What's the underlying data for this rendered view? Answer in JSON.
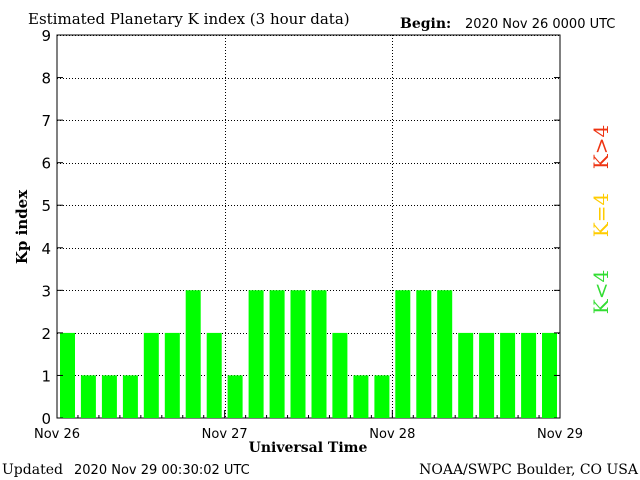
{
  "chart_data": {
    "type": "bar",
    "title": "Estimated Planetary K index (3 hour data)",
    "begin_label": "Begin:",
    "begin_value": "2020 Nov 26 0000 UTC",
    "ylabel": "Kp index",
    "xlabel": "Universal Time",
    "ylim": [
      0,
      9
    ],
    "yticks": [
      "0",
      "1",
      "2",
      "3",
      "4",
      "5",
      "6",
      "7",
      "8",
      "9"
    ],
    "xticks": [
      "Nov 26",
      "Nov 27",
      "Nov 28",
      "Nov 29"
    ],
    "values": [
      2,
      1,
      1,
      1,
      2,
      2,
      3,
      2,
      1,
      3,
      3,
      3,
      3,
      2,
      1,
      1,
      3,
      3,
      3,
      2,
      2,
      2,
      2,
      2
    ],
    "grid": true,
    "bar_color": "#00ff00",
    "legend": [
      {
        "label": "K<4",
        "color": "#33dd33"
      },
      {
        "label": "K=4",
        "color": "#ffcc00"
      },
      {
        "label": "K>4",
        "color": "#ee3311"
      }
    ]
  },
  "footer": {
    "updated_label": "Updated",
    "updated_value": "2020 Nov 29 00:30:02 UTC",
    "source": "NOAA/SWPC Boulder, CO USA"
  }
}
